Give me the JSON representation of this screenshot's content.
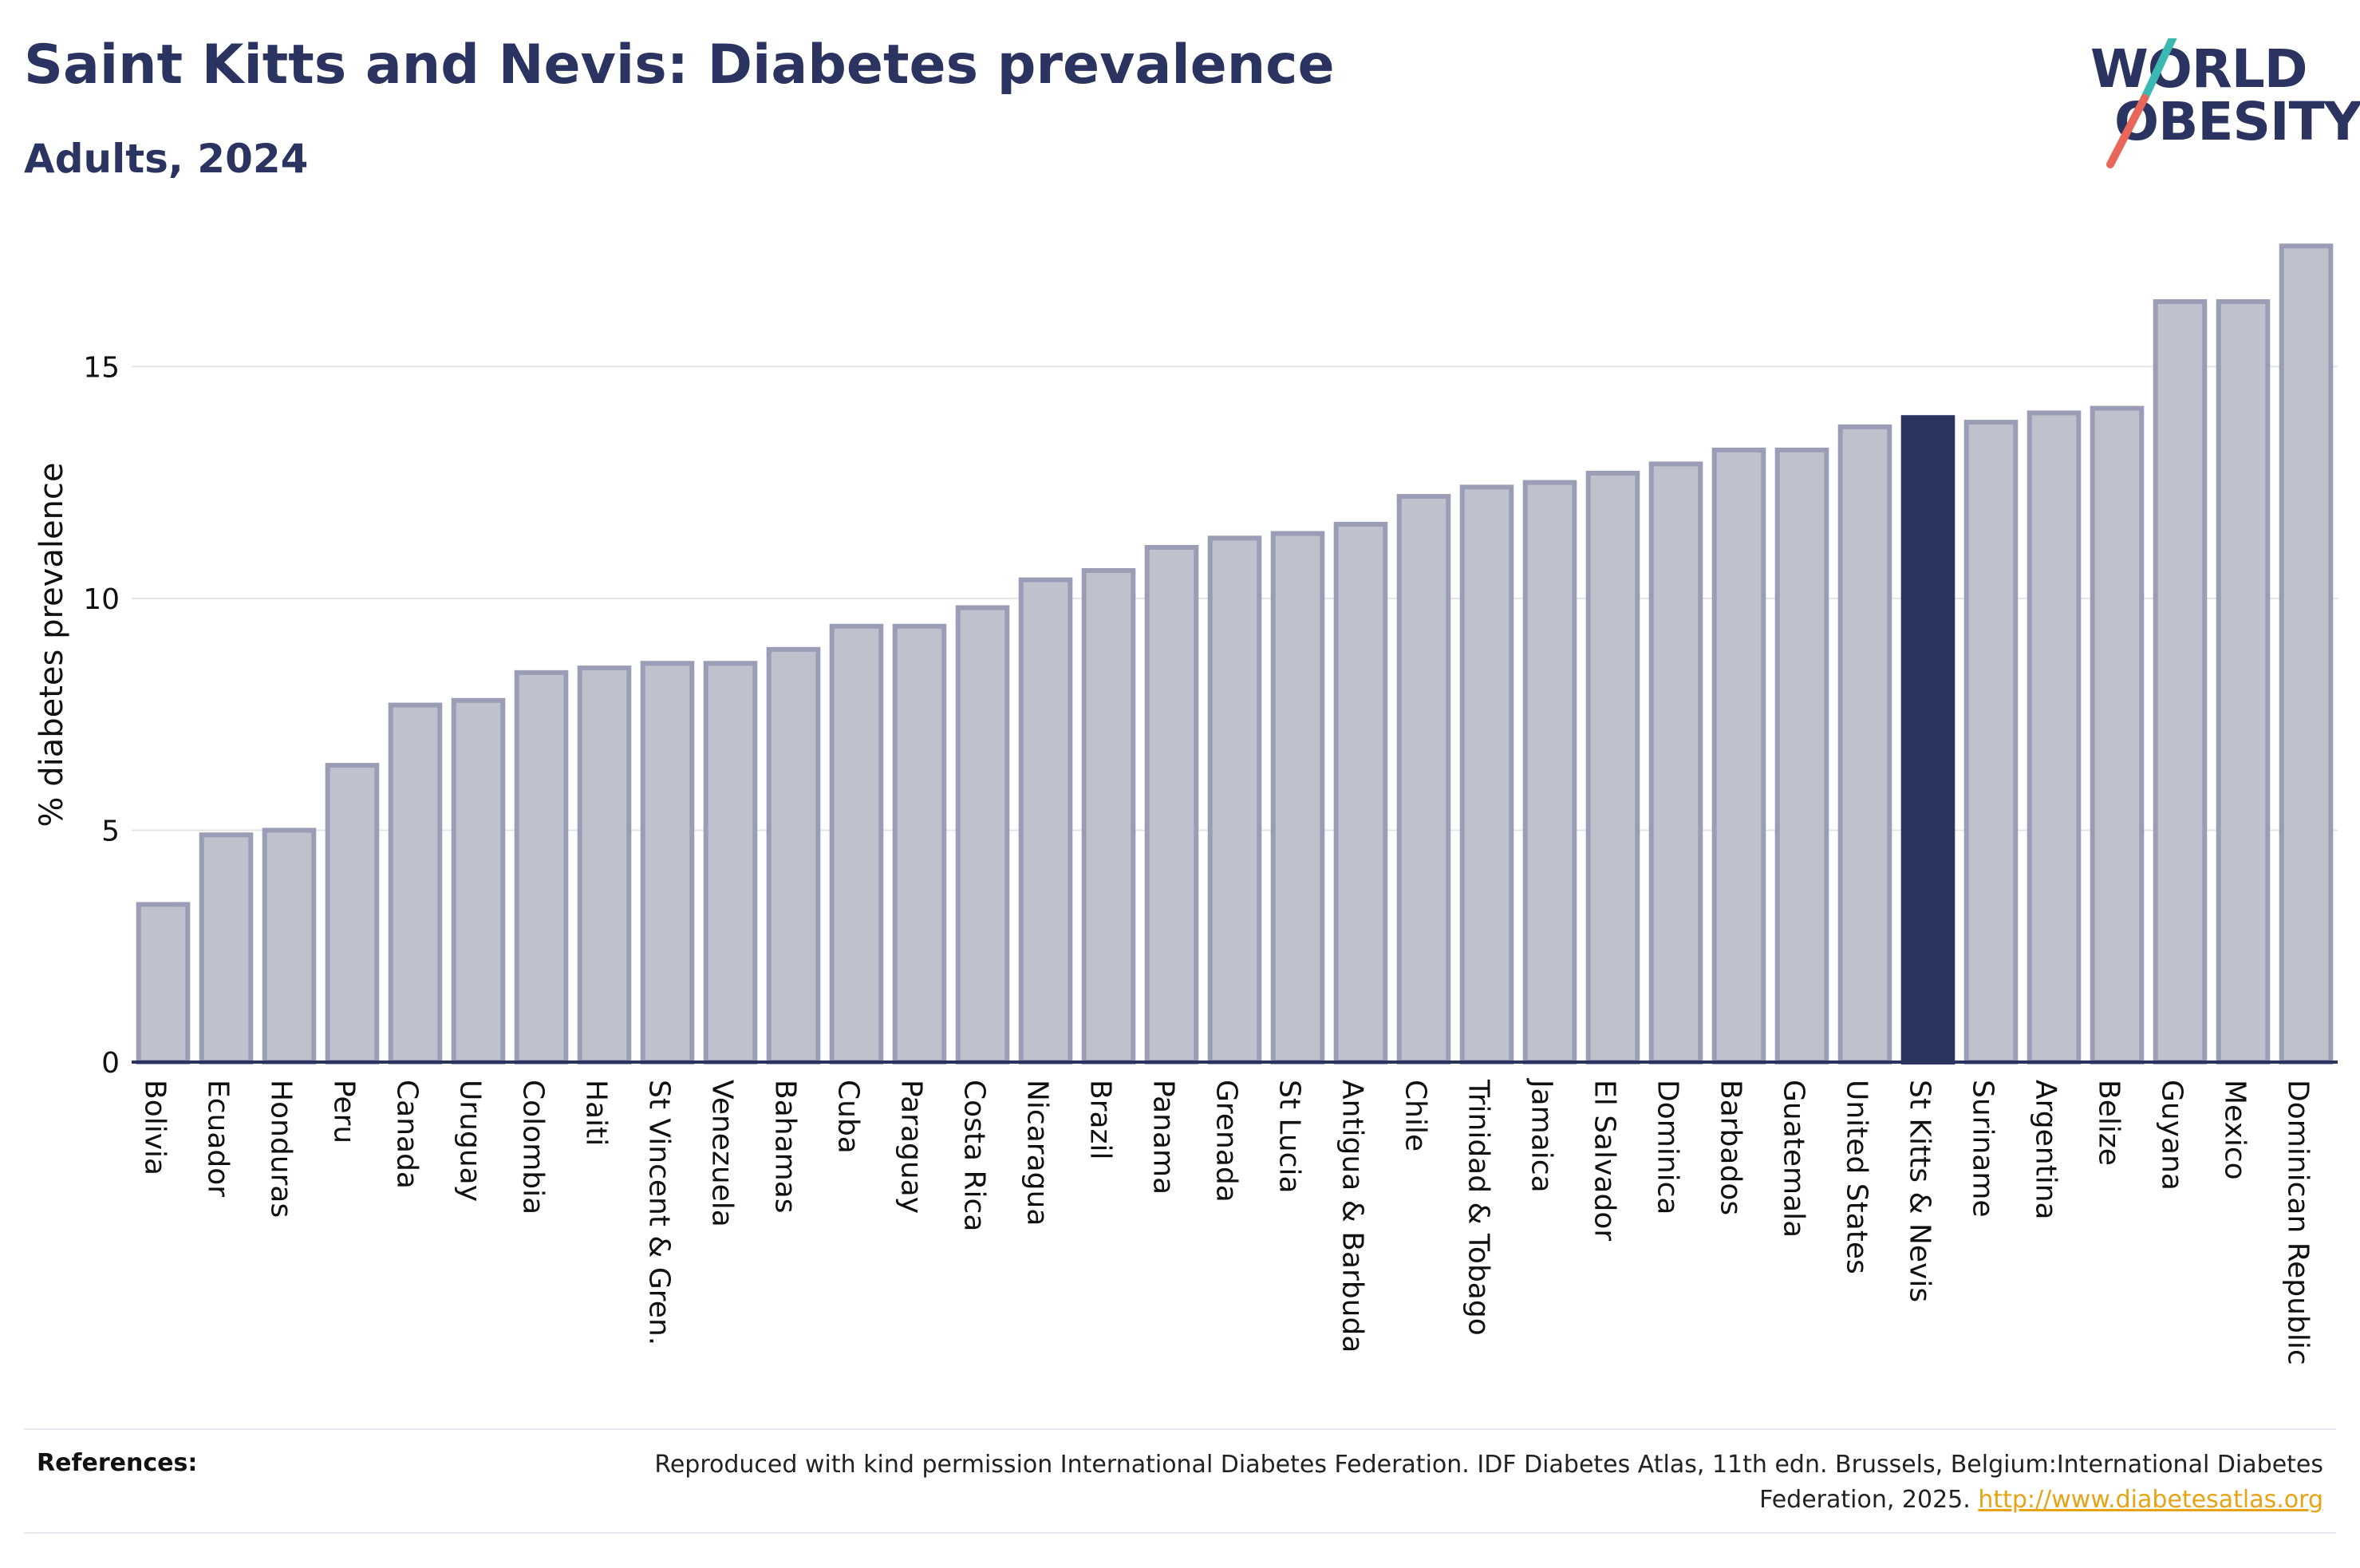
{
  "header": {
    "title": "Saint Kitts and Nevis: Diabetes prevalence",
    "subtitle": "Adults, 2024"
  },
  "logo": {
    "line1": "WORLD",
    "line2": "OBESITY"
  },
  "colors": {
    "highlight": "#2b3361",
    "bar_fill": "#bfc1cd",
    "bar_stroke": "#9a9db5",
    "grid": "#e5e5e5",
    "logo_teal": "#3cb8b2",
    "logo_coral": "#e8675a"
  },
  "chart_data": {
    "type": "bar",
    "title": "Saint Kitts and Nevis: Diabetes prevalence",
    "subtitle": "Adults, 2024",
    "ylabel": "% diabetes prevalence",
    "xlabel": "",
    "ylim": [
      0,
      18
    ],
    "yticks": [
      0,
      5,
      10,
      15
    ],
    "grid": true,
    "highlight": "St Kitts & Nevis",
    "categories": [
      "Bolivia",
      "Ecuador",
      "Honduras",
      "Peru",
      "Canada",
      "Uruguay",
      "Colombia",
      "Haiti",
      "St Vincent & Gren.",
      "Venezuela",
      "Bahamas",
      "Cuba",
      "Paraguay",
      "Costa Rica",
      "Nicaragua",
      "Brazil",
      "Panama",
      "Grenada",
      "St Lucia",
      "Antigua & Barbuda",
      "Chile",
      "Trinidad & Tobago",
      "Jamaica",
      "El Salvador",
      "Dominica",
      "Barbados",
      "Guatemala",
      "United States",
      "St Kitts & Nevis",
      "Suriname",
      "Argentina",
      "Belize",
      "Guyana",
      "Mexico",
      "Dominican Republic"
    ],
    "values": [
      3.4,
      4.9,
      5.0,
      6.4,
      7.7,
      7.8,
      8.4,
      8.5,
      8.6,
      8.6,
      8.9,
      9.4,
      9.4,
      9.8,
      10.4,
      10.6,
      11.1,
      11.3,
      11.4,
      11.6,
      12.2,
      12.4,
      12.5,
      12.7,
      12.9,
      13.2,
      13.2,
      13.7,
      13.9,
      13.8,
      14.0,
      14.1,
      16.4,
      16.4,
      17.6
    ]
  },
  "footer": {
    "label": "References:",
    "text": "Reproduced with kind permission International Diabetes Federation. IDF Diabetes Atlas, 11th edn. Brussels, Belgium:International Diabetes Federation, 2025.",
    "link": "http://www.diabetesatlas.org"
  }
}
